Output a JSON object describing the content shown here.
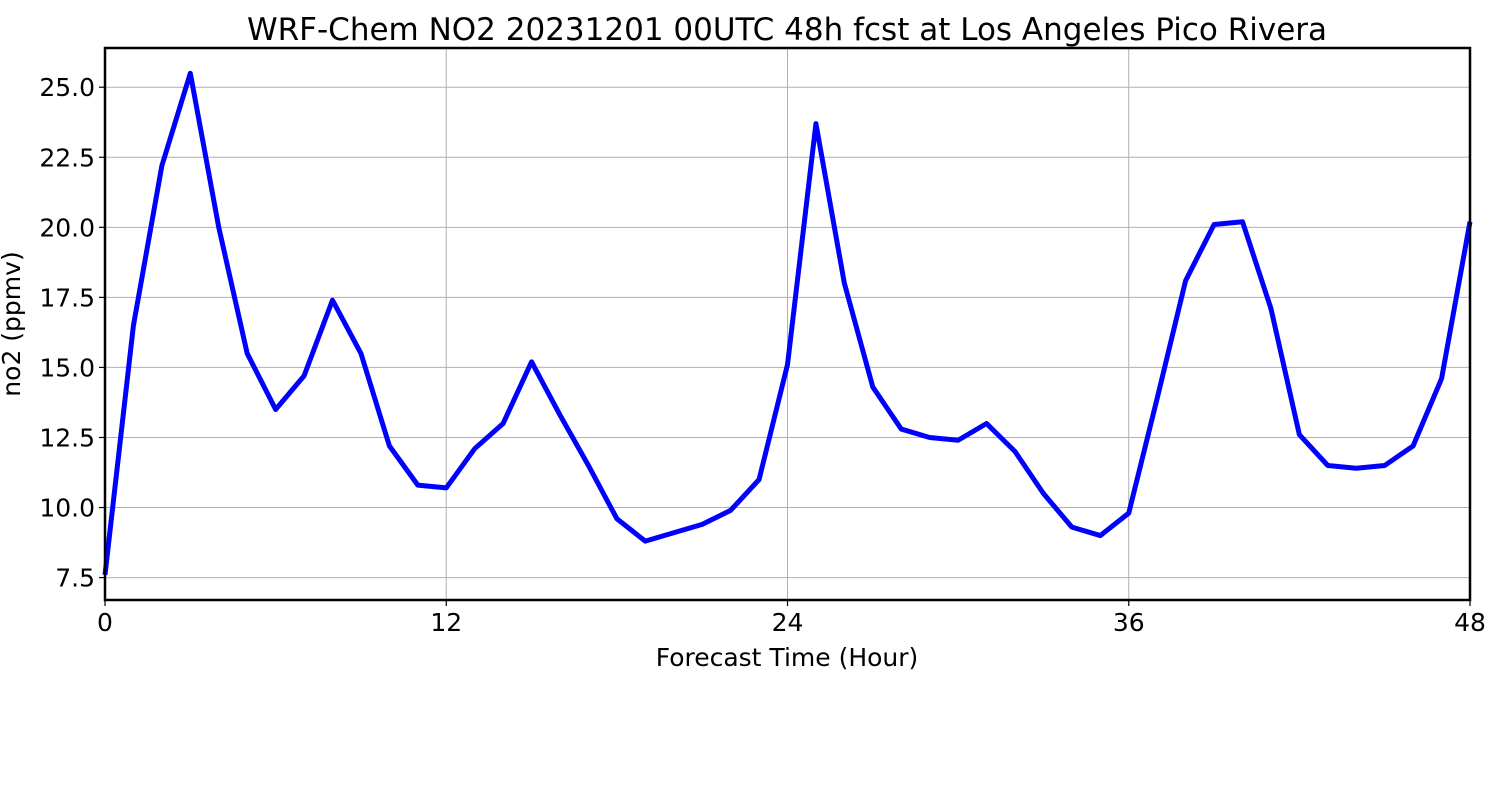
{
  "chart_data": {
    "type": "line",
    "title": "WRF-Chem NO2  20231201 00UTC 48h fcst at Los Angeles Pico Rivera",
    "xlabel": "Forecast Time (Hour)",
    "ylabel": "no2  (ppmv)",
    "xlim": [
      0,
      48
    ],
    "ylim": [
      6.7,
      26.4
    ],
    "xticks": [
      0,
      12,
      24,
      36,
      48
    ],
    "xtick_labels": [
      "0",
      "12",
      "24",
      "36",
      "48"
    ],
    "yticks": [
      7.5,
      10.0,
      12.5,
      15.0,
      17.5,
      20.0,
      22.5,
      25.0
    ],
    "ytick_labels": [
      "7.5",
      "10.0",
      "12.5",
      "15.0",
      "17.5",
      "20.0",
      "22.5",
      "25.0"
    ],
    "grid": true,
    "series": [
      {
        "color": "#0000ff",
        "x": [
          0,
          1,
          2,
          3,
          4,
          5,
          6,
          7,
          8,
          9,
          10,
          11,
          12,
          13,
          14,
          15,
          16,
          17,
          18,
          19,
          20,
          21,
          22,
          23,
          24,
          25,
          26,
          27,
          28,
          29,
          30,
          31,
          32,
          33,
          34,
          35,
          36,
          37,
          38,
          39,
          40,
          41,
          42,
          43,
          44,
          45,
          46,
          47,
          48
        ],
        "values": [
          7.6,
          16.5,
          22.2,
          25.5,
          20.0,
          15.5,
          13.5,
          14.7,
          17.4,
          15.5,
          12.2,
          10.8,
          10.7,
          12.1,
          13.0,
          15.2,
          13.3,
          11.5,
          9.6,
          8.8,
          9.1,
          9.4,
          9.9,
          11.0,
          15.1,
          23.7,
          18.0,
          14.3,
          12.8,
          12.5,
          12.4,
          13.0,
          12.0,
          10.5,
          9.3,
          9.0,
          9.8,
          13.9,
          18.1,
          20.1,
          20.2,
          17.1,
          12.6,
          11.5,
          11.4,
          11.5,
          12.2,
          14.6,
          20.2
        ]
      }
    ]
  }
}
